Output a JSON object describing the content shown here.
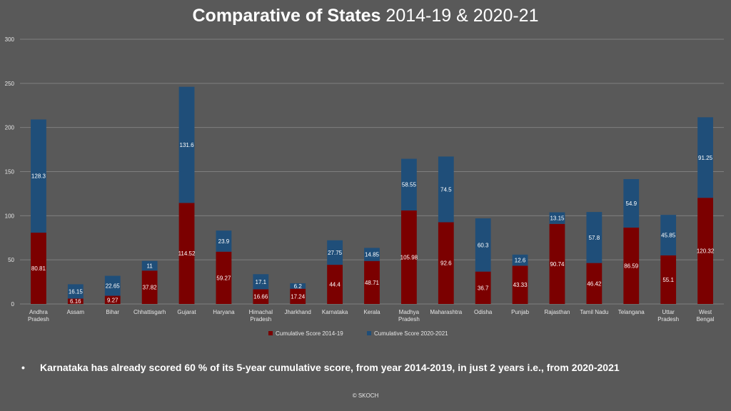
{
  "title_main": "Comparative of States",
  "title_sub": "2014-19 & 2020-21",
  "note_bullet": "•",
  "note": "Karnataka has already scored 60 % of its 5-year cumulative score, from year 2014-2019, in just 2 years i.e., from 2020-2021",
  "copyright": "© SKOCH",
  "colors": {
    "series1": "#7b0000",
    "series2": "#1f4e79",
    "background": "#595959",
    "grid": "#7f7f7f"
  },
  "chart_data": {
    "type": "bar",
    "stacked": true,
    "title": "Comparative of States 2014-19 & 2020-21",
    "categories": [
      "Andhra Pradesh",
      "Assam",
      "Bihar",
      "Chhattisgarh",
      "Gujarat",
      "Haryana",
      "Himachal Pradesh",
      "Jharkhand",
      "Karnataka",
      "Kerala",
      "Madhya Pradesh",
      "Maharashtra",
      "Odisha",
      "Punjab",
      "Rajasthan",
      "Tamil Nadu",
      "Telangana",
      "Uttar Pradesh",
      "West Bengal"
    ],
    "series": [
      {
        "name": "Cumulative Score 2014-19",
        "color": "#7b0000",
        "values": [
          80.81,
          6.16,
          9.27,
          37.82,
          114.52,
          59.27,
          16.66,
          17.24,
          44.4,
          48.71,
          105.98,
          92.6,
          36.7,
          43.33,
          90.74,
          46.42,
          86.59,
          55.1,
          120.32
        ]
      },
      {
        "name": "Cumulative Score 2020-2021",
        "color": "#1f4e79",
        "values": [
          128.3,
          16.15,
          22.65,
          11,
          131.6,
          23.9,
          17.1,
          6.2,
          27.75,
          14.85,
          58.55,
          74.5,
          60.3,
          12.6,
          13.15,
          57.8,
          54.9,
          45.85,
          91.25
        ]
      }
    ],
    "ylim": [
      0,
      300
    ],
    "yticks": [
      0,
      50,
      100,
      150,
      200,
      250,
      300
    ],
    "grid": true,
    "legend": "bottom",
    "xlabel": "",
    "ylabel": ""
  }
}
